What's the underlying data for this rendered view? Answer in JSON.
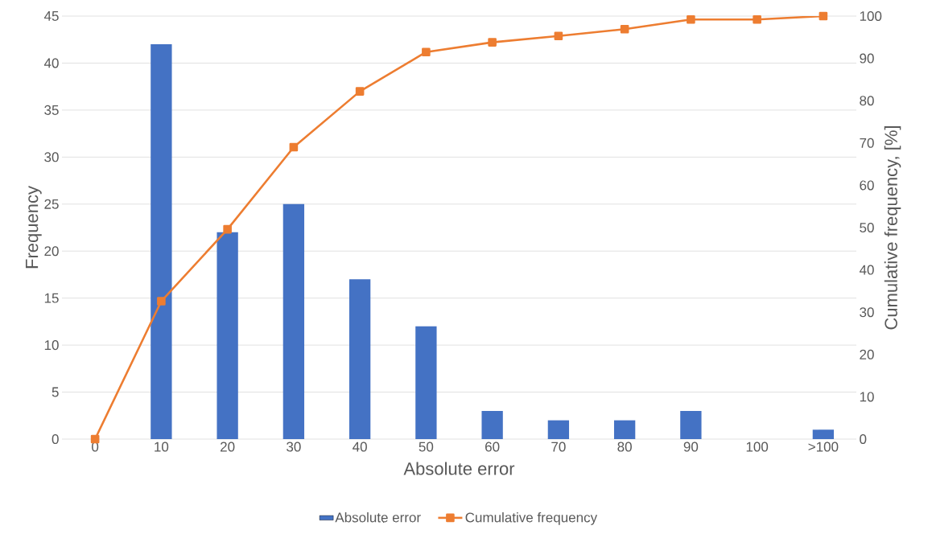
{
  "chart_data": {
    "type": "bar",
    "categories": [
      "0",
      "10",
      "20",
      "30",
      "40",
      "50",
      "60",
      "70",
      "80",
      "90",
      "100",
      ">100"
    ],
    "xlabel": "Absolute error",
    "ylabel": "Frequency",
    "y2label": "Cumulative frequency, [%]",
    "ylim": [
      0,
      45
    ],
    "yticks": [
      0,
      5,
      10,
      15,
      20,
      25,
      30,
      35,
      40,
      45
    ],
    "y2lim": [
      0,
      100
    ],
    "y2ticks": [
      0,
      10,
      20,
      30,
      40,
      50,
      60,
      70,
      80,
      90,
      100
    ],
    "grid": "y",
    "legend": "bottom",
    "series": [
      {
        "name": "Absolute error",
        "color": "#4472c4",
        "values": [
          0,
          42,
          22,
          25,
          17,
          12,
          3,
          2,
          2,
          3,
          0,
          1
        ]
      },
      {
        "name": "Cumulative frequency",
        "type": "line",
        "axis": "y2",
        "marker": "square",
        "color": "#ed7d31",
        "values": [
          0,
          32.6,
          49.6,
          69.0,
          82.2,
          91.5,
          93.8,
          95.3,
          96.9,
          99.2,
          99.2,
          100
        ]
      }
    ]
  }
}
